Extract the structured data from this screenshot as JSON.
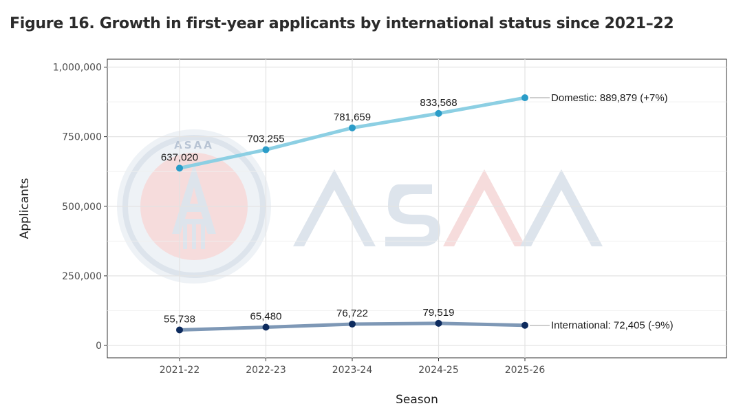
{
  "figure_title": "Figure 16. Growth in first-year applicants by international status since 2021–22",
  "watermark": {
    "text": "ASAA",
    "seal_text": "ASAA"
  },
  "colors": {
    "domestic_line": "#8ccfe3",
    "domestic_point": "#2a9cc8",
    "international_line": "#7e98b6",
    "international_point": "#0d2b5e",
    "grid": "#e3e3e3",
    "watermark_blue": "#dde4ec",
    "watermark_red": "#f6dcdc"
  },
  "chart_data": {
    "type": "line",
    "title": "Figure 16. Growth in first-year applicants by international status since 2021–22",
    "xlabel": "Season",
    "ylabel": "Applicants",
    "categories": [
      "2021-22",
      "2022-23",
      "2023-24",
      "2024-25",
      "2025-26"
    ],
    "ylim": [
      0,
      1000000
    ],
    "yticks": [
      0,
      250000,
      500000,
      750000,
      1000000
    ],
    "ytick_labels": [
      "0",
      "250,000",
      "500,000",
      "750,000",
      "1,000,000"
    ],
    "grid": true,
    "series": [
      {
        "name": "Domestic",
        "values": [
          637020,
          703255,
          781659,
          833568,
          889879
        ],
        "data_labels": [
          "637,020",
          "703,255",
          "781,659",
          "833,568",
          null
        ],
        "end_label": "Domestic: 889,879 (+7%)"
      },
      {
        "name": "International",
        "values": [
          55738,
          65480,
          76722,
          79519,
          72405
        ],
        "data_labels": [
          "55,738",
          "65,480",
          "76,722",
          "79,519",
          null
        ],
        "end_label": "International: 72,405 (-9%)"
      }
    ]
  }
}
